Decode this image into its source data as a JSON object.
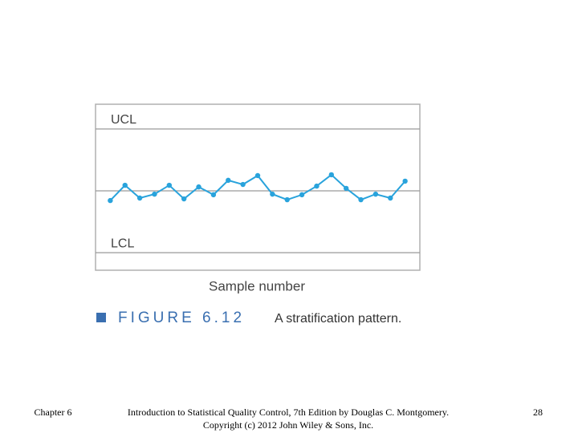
{
  "chart_data": {
    "type": "line",
    "x_label": "Sample number",
    "figure_label": "FIGURE 6.12",
    "caption": "A stratification pattern.",
    "x": [
      1,
      2,
      3,
      4,
      5,
      6,
      7,
      8,
      9,
      10,
      11,
      12,
      13,
      14,
      15,
      16,
      17,
      18,
      19,
      20,
      21
    ],
    "series": [
      {
        "color": "#29a3dc",
        "values": [
          -0.47,
          0.27,
          -0.35,
          -0.16,
          0.27,
          -0.39,
          0.19,
          -0.19,
          0.51,
          0.31,
          0.74,
          -0.16,
          -0.43,
          -0.19,
          0.23,
          0.78,
          0.12,
          -0.43,
          -0.16,
          -0.35,
          0.47
        ]
      }
    ],
    "control_lines": [
      {
        "label": "UCL",
        "value": 3
      },
      {
        "label": "LCL",
        "value": -3
      }
    ],
    "center_line": 0,
    "xlim": [
      0,
      22
    ],
    "ylim": [
      -3.85,
      4.2
    ]
  },
  "footer": {
    "left": "Chapter 6",
    "center": [
      "Introduction to Statistical Quality Control, 7th Edition by Douglas C. Montgomery.",
      "Copyright (c) 2012  John Wiley & Sons, Inc."
    ],
    "right": "28"
  }
}
